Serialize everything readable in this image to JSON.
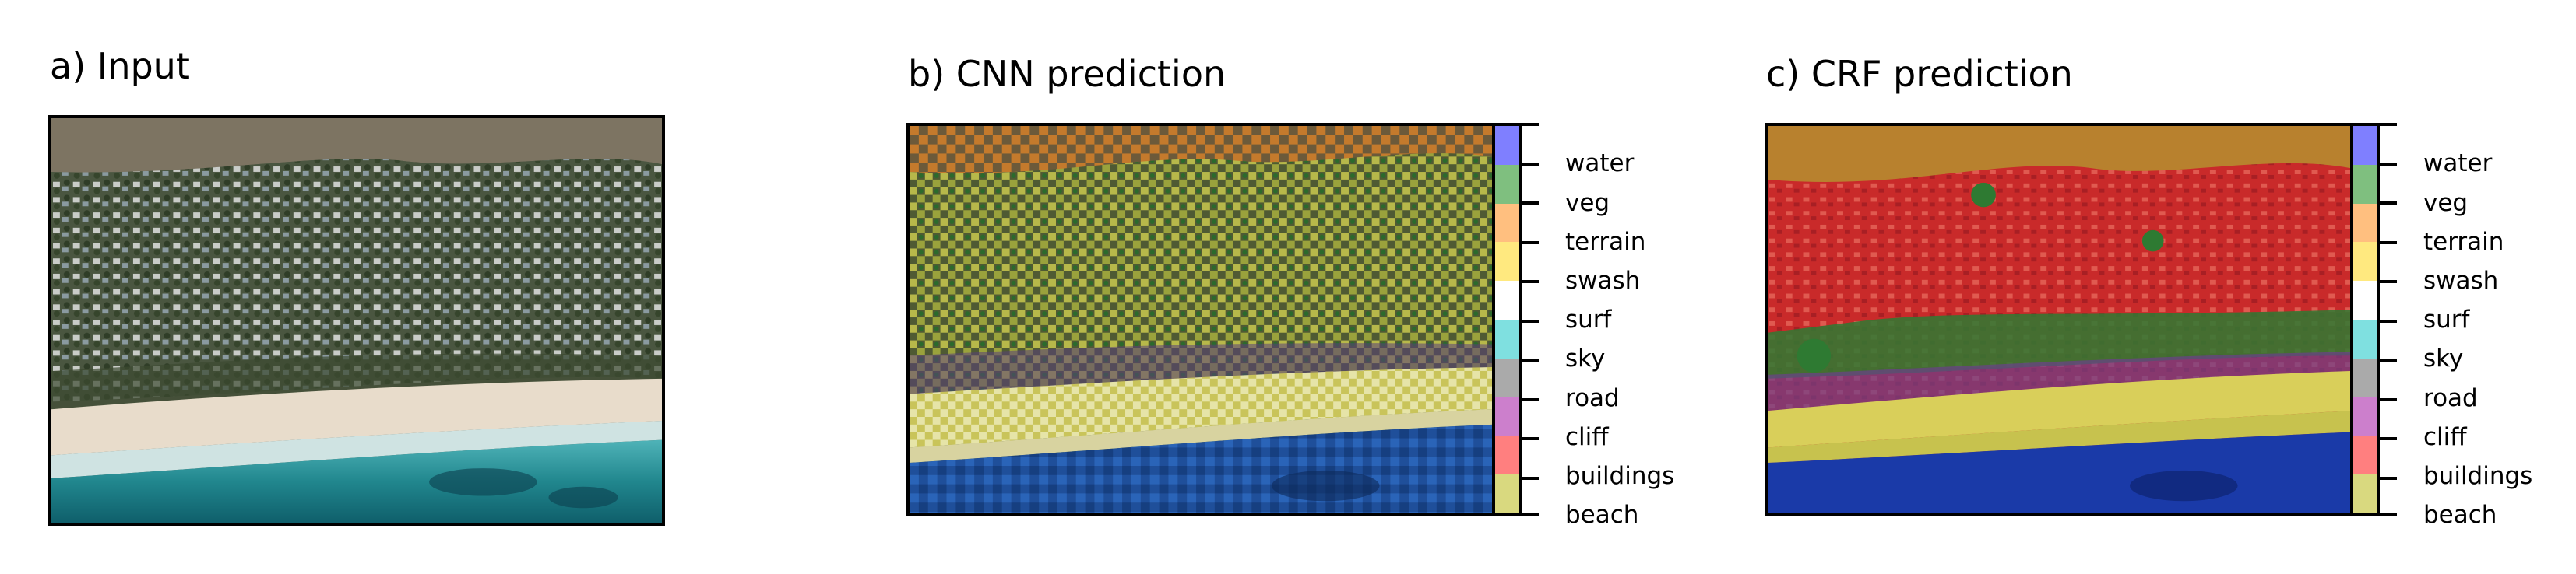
{
  "panels": [
    {
      "title": "a) Input"
    },
    {
      "title": "b) CNN prediction"
    },
    {
      "title": "c) CRF prediction"
    }
  ],
  "legend": {
    "classes": [
      {
        "label": "water",
        "color": "#7f7fff"
      },
      {
        "label": "veg",
        "color": "#7fbf7f"
      },
      {
        "label": "terrain",
        "color": "#ffbf7f"
      },
      {
        "label": "swash",
        "color": "#ffe97f"
      },
      {
        "label": "surf",
        "color": "#ffffff"
      },
      {
        "label": "sky",
        "color": "#7fe0e0"
      },
      {
        "label": "road",
        "color": "#aaaaaa"
      },
      {
        "label": "cliff",
        "color": "#cc7fcc"
      },
      {
        "label": "buildings",
        "color": "#ff7f7f"
      },
      {
        "label": "beach",
        "color": "#d9d97f"
      }
    ]
  }
}
